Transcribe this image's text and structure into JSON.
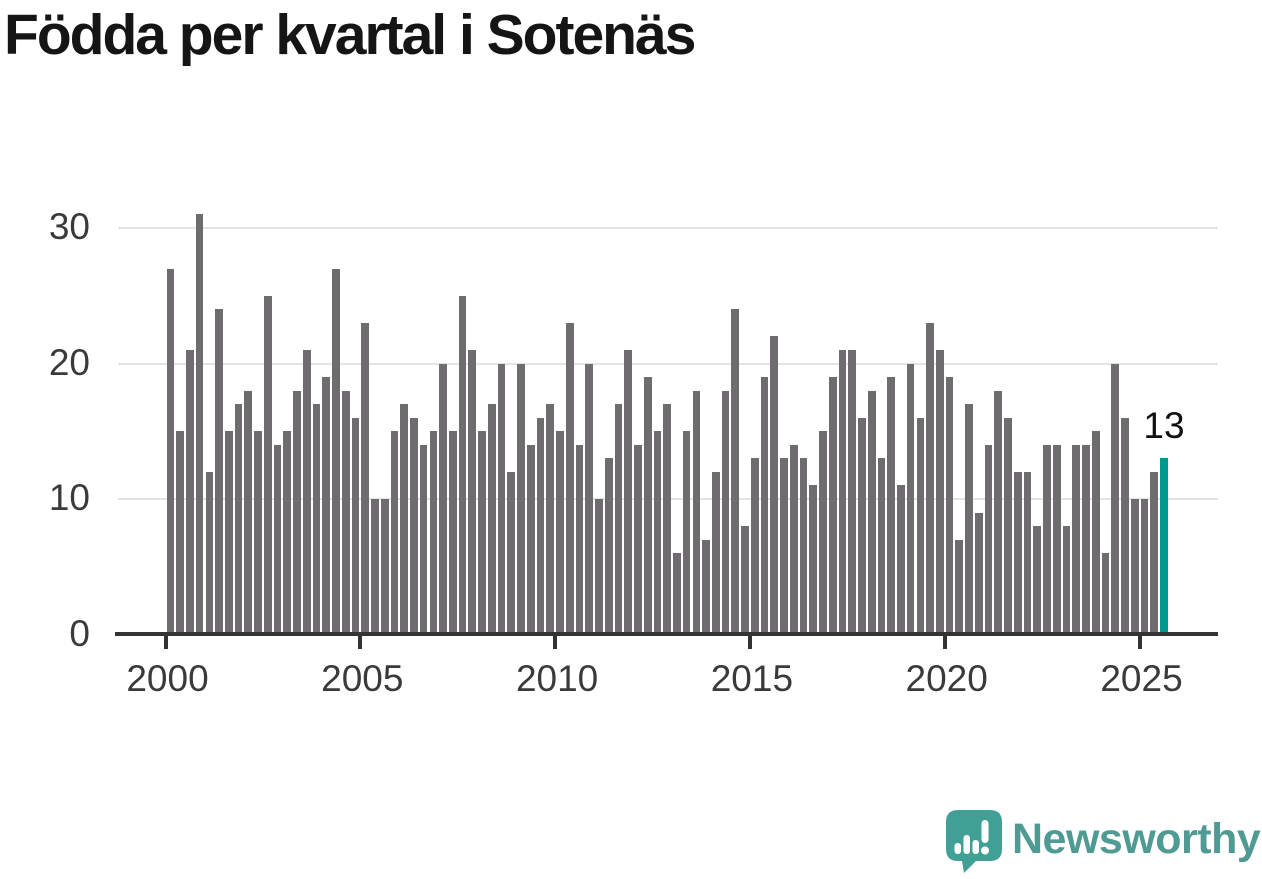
{
  "title": "Födda per kvartal i Sotenäs",
  "annotation": {
    "last_value_label": "13"
  },
  "logo": {
    "text": "Newsworthy",
    "icon": "speech-bubble-bar-chart-icon"
  },
  "colors": {
    "bar": "#6f6c70",
    "highlight": "#00998f",
    "grid": "#e4e4e4",
    "axis": "#333333",
    "tick_label": "#3a3a3a",
    "title": "#151515",
    "logo_icon": "#41a096",
    "logo_text": "#4f9b94",
    "background": "#ffffff"
  },
  "chart_data": {
    "type": "bar",
    "title": "Födda per kvartal i Sotenäs",
    "xlabel": "",
    "ylabel": "",
    "x_unit": "quarter",
    "start_quarter": "2000 Q1",
    "end_quarter": "2025 Q3",
    "ylim": [
      0,
      31
    ],
    "grid": "horizontal",
    "y_ticks": [
      "0",
      "10",
      "20",
      "30"
    ],
    "x_ticks": [
      {
        "label": "2000",
        "quarter_index": 0
      },
      {
        "label": "2005",
        "quarter_index": 20
      },
      {
        "label": "2010",
        "quarter_index": 40
      },
      {
        "label": "2015",
        "quarter_index": 60
      },
      {
        "label": "2020",
        "quarter_index": 80
      },
      {
        "label": "2025",
        "quarter_index": 100
      }
    ],
    "values": [
      27,
      15,
      21,
      31,
      12,
      24,
      15,
      17,
      18,
      15,
      25,
      14,
      15,
      18,
      21,
      17,
      19,
      27,
      18,
      16,
      23,
      10,
      10,
      15,
      17,
      16,
      14,
      15,
      20,
      15,
      25,
      21,
      15,
      17,
      20,
      12,
      20,
      14,
      16,
      17,
      15,
      23,
      14,
      20,
      10,
      13,
      17,
      21,
      14,
      19,
      15,
      17,
      6,
      15,
      18,
      7,
      12,
      18,
      24,
      8,
      13,
      19,
      22,
      13,
      14,
      13,
      11,
      15,
      19,
      21,
      21,
      16,
      18,
      13,
      19,
      11,
      20,
      16,
      23,
      21,
      19,
      7,
      17,
      9,
      14,
      18,
      16,
      12,
      12,
      8,
      14,
      14,
      8,
      14,
      14,
      15,
      6,
      20,
      16,
      10,
      10,
      12,
      13
    ],
    "highlight_last_bar": true,
    "last_value_label": "13"
  }
}
